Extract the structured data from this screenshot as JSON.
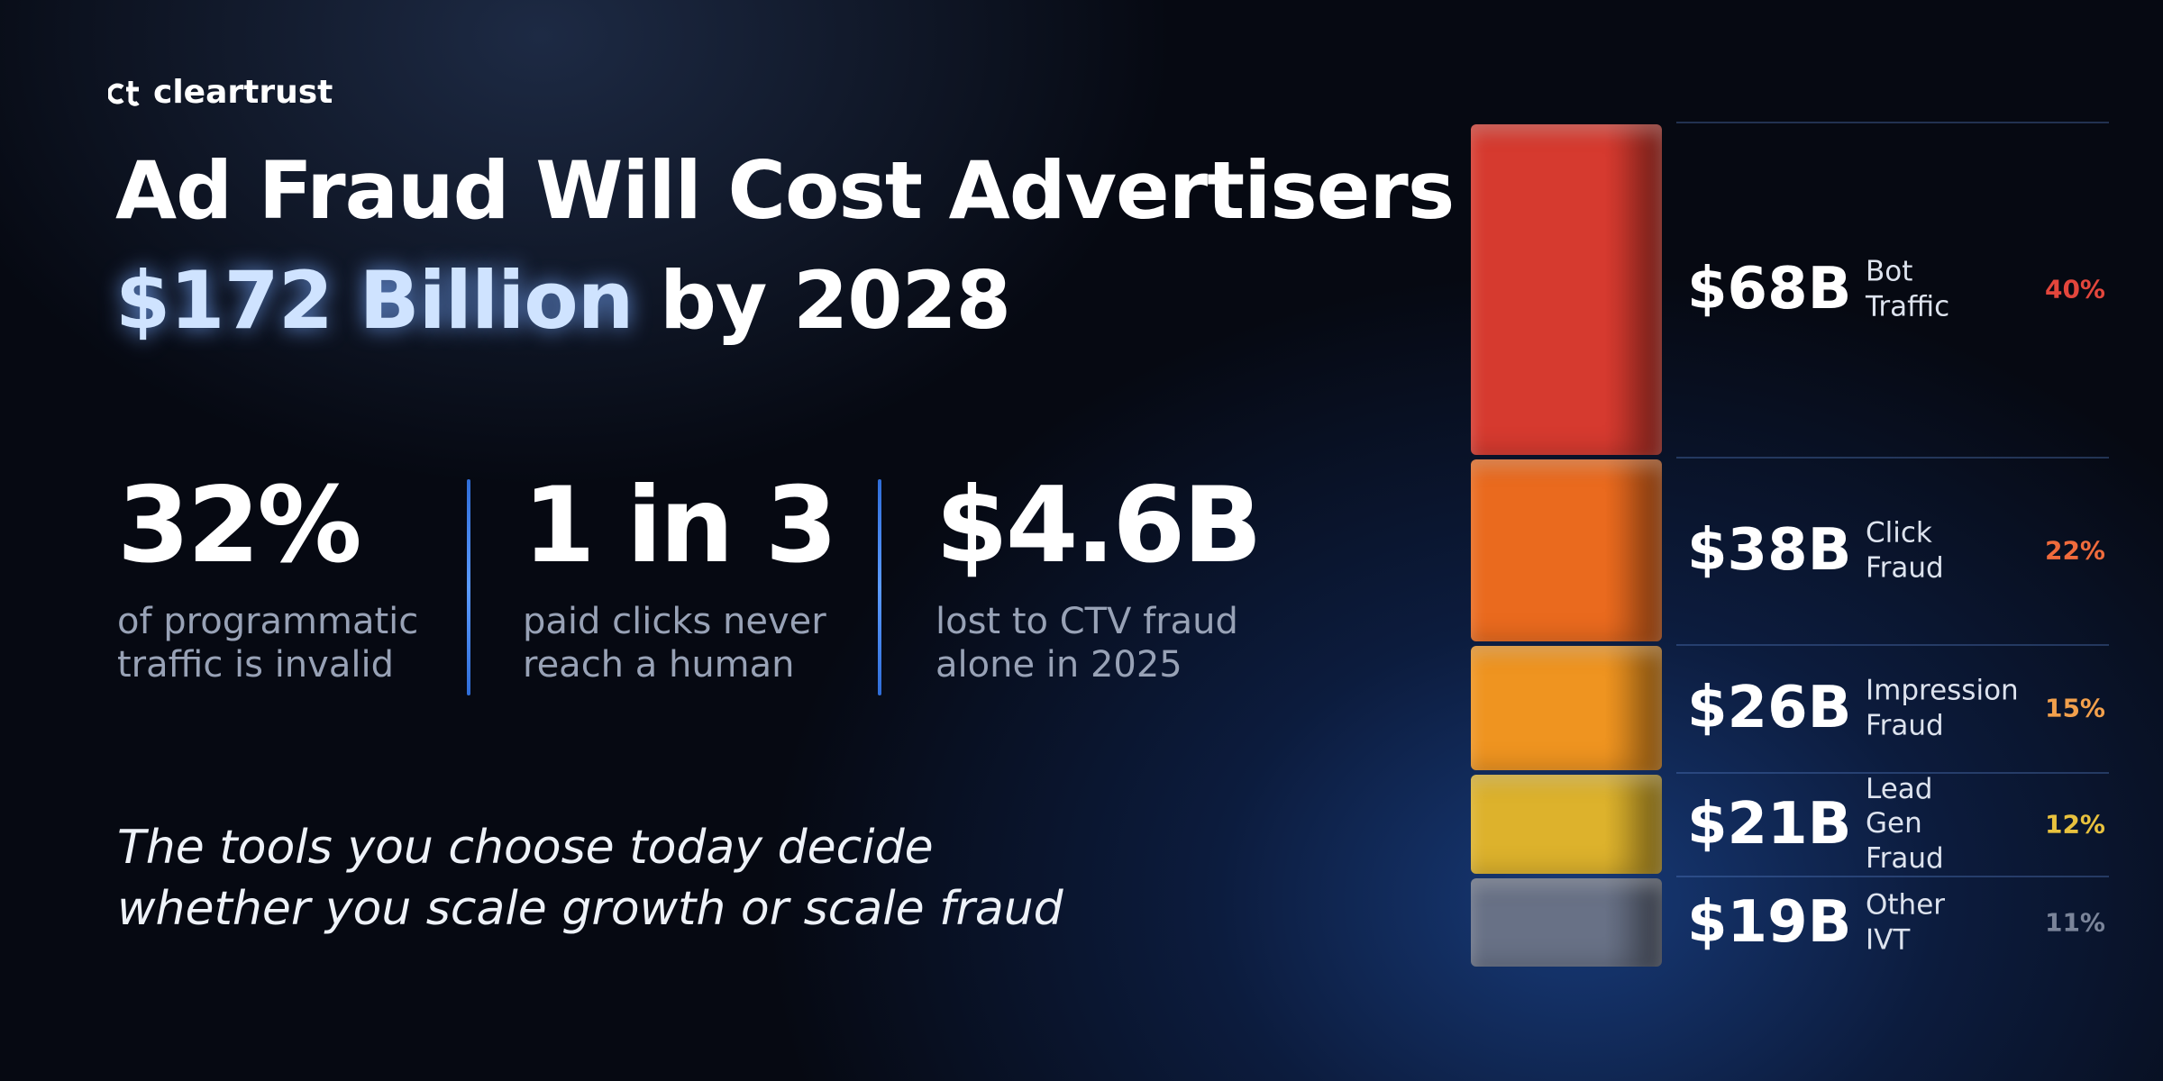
{
  "brand": {
    "name": "cleartrust"
  },
  "headline": {
    "line1": "Ad Fraud Will Cost Advertisers",
    "highlight": "$172 Billion",
    "rest": "by 2028"
  },
  "stats": [
    {
      "value": "32%",
      "caption": "of programmatic traffic is invalid"
    },
    {
      "value": "1 in 3",
      "caption": "paid clicks never reach a human"
    },
    {
      "value": "$4.6B",
      "caption": "lost to CTV fraud alone in 2025"
    }
  ],
  "tagline": "The tools you choose today decide whether you scale growth or scale fraud",
  "chart_data": {
    "type": "stacked-bar",
    "categories": [
      "Bot Traffic",
      "Click Fraud",
      "Impression Fraud",
      "Lead Gen Fraud",
      "Other IVT"
    ],
    "values": [
      68,
      38,
      26,
      21,
      19
    ],
    "value_labels": [
      "$68B",
      "$38B",
      "$26B",
      "$21B",
      "$19B"
    ],
    "shares": [
      40,
      22,
      15,
      12,
      11
    ],
    "share_labels": [
      "40%",
      "22%",
      "15%",
      "12%",
      "11%"
    ],
    "colors": [
      "#d63a2f",
      "#ea6a1e",
      "#ef9420",
      "#ddb22c",
      "#687186"
    ],
    "share_colors": [
      "#e3463c",
      "#f06b3c",
      "#f2a04c",
      "#e9c23e",
      "#7b859a"
    ]
  }
}
